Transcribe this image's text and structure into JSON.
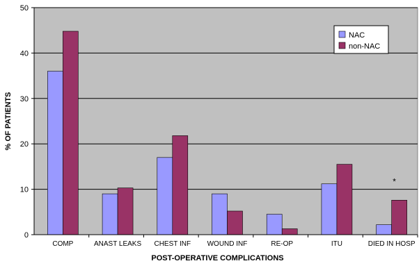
{
  "chart_data": {
    "type": "bar",
    "title": "",
    "xlabel": "POST-OPERATIVE COMPLICATIONS",
    "ylabel": "% OF PATIENTS",
    "ylim": [
      0,
      50
    ],
    "yticks": [
      0,
      10,
      20,
      30,
      40,
      50
    ],
    "grid": true,
    "legend_position": "top-right",
    "categories": [
      "COMP",
      "ANAST LEAKS",
      "CHEST INF",
      "WOUND INF",
      "RE-OP",
      "ITU",
      "DIED IN HOSP"
    ],
    "series": [
      {
        "name": "NAC",
        "color": "#9999ff",
        "values": [
          36,
          9,
          17,
          9,
          4.5,
          11.2,
          2.2
        ]
      },
      {
        "name": "non-NAC",
        "color": "#993366",
        "values": [
          44.8,
          10.3,
          21.8,
          5.2,
          1.3,
          15.5,
          7.6
        ]
      }
    ],
    "annotations": [
      {
        "text": "*",
        "category": "DIED IN HOSP",
        "y": 12.5
      }
    ],
    "plot_background": "#c0c0c0"
  }
}
